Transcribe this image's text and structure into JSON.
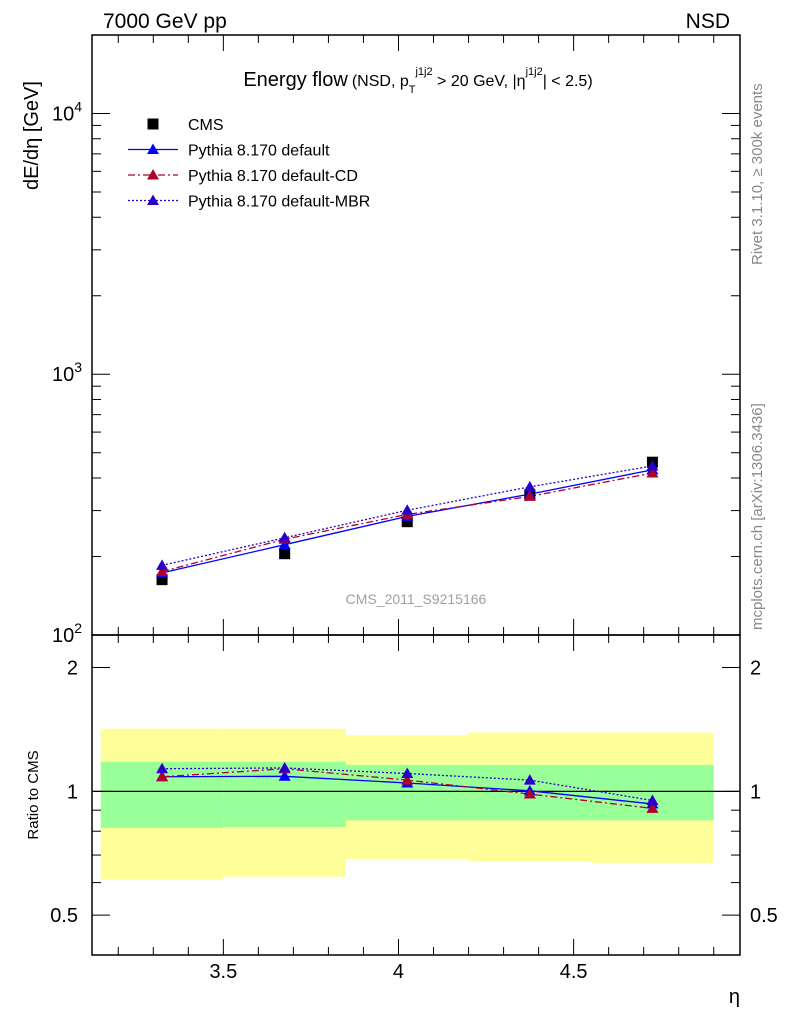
{
  "header": {
    "left_label": "7000 GeV pp",
    "right_label": "NSD"
  },
  "side_text": {
    "rivet": "Rivet 3.1.10, ≥ 300k events",
    "mcplots": "mcplots.cern.ch [arXiv:1306.3436]"
  },
  "analysis_id": "CMS_2011_S9215166",
  "chart_data": [
    {
      "panel": "main",
      "type": "scatter",
      "title": "Energy flow",
      "subtitle": "(NSD, p_T^{j1j2} > 20 GeV, |η^{j1j2}| < 2.5)",
      "title_parts": {
        "main": "Energy flow",
        "open": "(NSD, p",
        "sub": "T",
        "sup": "j1j2",
        "mid": " > 20 GeV, |η",
        "sup2": "j1j2",
        "close": "| < 2.5)"
      },
      "xlabel": "η",
      "ylabel": "dE/dη [GeV]",
      "xlim": [
        3.125,
        4.975
      ],
      "ylim": [
        100,
        20000
      ],
      "yscale": "log",
      "x_ticks": [
        "3.5",
        "4",
        "4.5"
      ],
      "y_ticks": [
        "10^2",
        "10^3",
        "10^4"
      ],
      "y_tick_parts": [
        {
          "base": "10",
          "exp": "2"
        },
        {
          "base": "10",
          "exp": "3"
        },
        {
          "base": "10",
          "exp": "4"
        }
      ],
      "legend_position": "top-left",
      "x": [
        3.325,
        3.675,
        4.025,
        4.375,
        4.725
      ],
      "series": [
        {
          "name": "CMS",
          "color": "#000000",
          "marker": "square",
          "line": "none",
          "values": [
            163,
            205,
            272,
            345,
            460
          ]
        },
        {
          "name": "Pythia 8.170 default",
          "color": "#0000ff",
          "marker": "triangle",
          "line": "solid",
          "values": [
            173,
            222,
            285,
            347,
            430
          ]
        },
        {
          "name": "Pythia 8.170 default-CD",
          "color": "#b0002c",
          "marker": "triangle",
          "line": "dashdot",
          "values": [
            175,
            233,
            290,
            340,
            418
          ]
        },
        {
          "name": "Pythia 8.170 default-MBR",
          "color": "#2a00c8",
          "marker": "triangle",
          "line": "dotted",
          "values": [
            185,
            236,
            301,
            370,
            445
          ]
        }
      ]
    },
    {
      "panel": "ratio",
      "type": "scatter",
      "ylabel": "Ratio to CMS",
      "xlabel": "η",
      "xlim": [
        3.125,
        4.975
      ],
      "ylim": [
        0.4,
        2.4
      ],
      "yscale": "log",
      "x_ticks": [
        "3.5",
        "4",
        "4.5"
      ],
      "y_ticks": [
        "0.5",
        "1",
        "2"
      ],
      "reference": 1,
      "bands": [
        {
          "x0": 3.15,
          "x1": 3.5,
          "inner": [
            0.815,
            1.18
          ],
          "outer": [
            0.61,
            1.42
          ]
        },
        {
          "x0": 3.5,
          "x1": 3.85,
          "inner": [
            0.82,
            1.18
          ],
          "outer": [
            0.62,
            1.42
          ]
        },
        {
          "x0": 3.85,
          "x1": 4.2,
          "inner": [
            0.85,
            1.16
          ],
          "outer": [
            0.685,
            1.37
          ]
        },
        {
          "x0": 4.2,
          "x1": 4.55,
          "inner": [
            0.85,
            1.16
          ],
          "outer": [
            0.675,
            1.39
          ]
        },
        {
          "x0": 4.55,
          "x1": 4.9,
          "inner": [
            0.85,
            1.16
          ],
          "outer": [
            0.67,
            1.39
          ]
        }
      ],
      "band_colors": {
        "inner": "#99ff99",
        "outer": "#ffff99"
      },
      "x": [
        3.325,
        3.675,
        4.025,
        4.375,
        4.725
      ],
      "series": [
        {
          "name": "Pythia 8.170 default",
          "color": "#0000ff",
          "line": "solid",
          "values": [
            1.085,
            1.088,
            1.048,
            1.003,
            0.932
          ]
        },
        {
          "name": "Pythia 8.170 default-CD",
          "color": "#b0002c",
          "line": "dashdot",
          "values": [
            1.085,
            1.135,
            1.065,
            0.985,
            0.909
          ]
        },
        {
          "name": "Pythia 8.170 default-MBR",
          "color": "#2a00c8",
          "line": "dotted",
          "values": [
            1.135,
            1.14,
            1.105,
            1.065,
            0.95
          ]
        }
      ]
    }
  ]
}
